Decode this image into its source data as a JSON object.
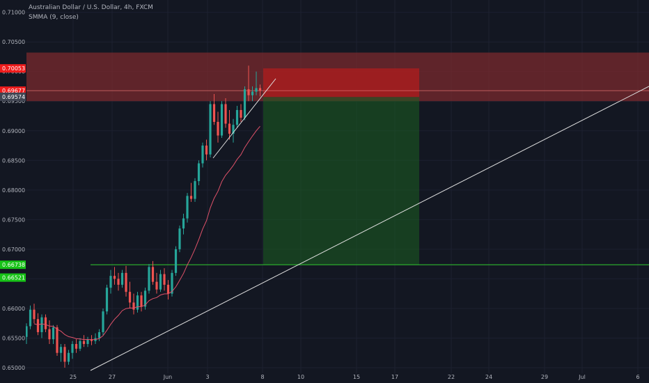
{
  "header": {
    "title": "Australian Dollar / U.S. Dollar, 4h, FXCM",
    "indicator": "SMMA (9, close)"
  },
  "colors": {
    "background": "#131722",
    "up": "#26a69a",
    "down": "#ef5350",
    "smma": "#e0526a",
    "resistance_zone": "#7a2a2e",
    "stop_zone": "#b71c1c",
    "target_zone": "#1b5e20",
    "support_line": "#2eb82e",
    "trendline": "#e0e0e0"
  },
  "chart_data": {
    "type": "candlestick",
    "ylim": [
      0.6497,
      0.7138
    ],
    "y_ticks": [
      "0.71000",
      "0.70500",
      "0.70000",
      "0.69500",
      "0.69000",
      "0.68500",
      "0.68000",
      "0.67500",
      "0.67000",
      "0.66500",
      "0.66000",
      "0.65500",
      "0.65000"
    ],
    "x_ticks": [
      "25",
      "27",
      "Jun",
      "3",
      "8",
      "10",
      "15",
      "17",
      "22",
      "24",
      "29",
      "Jul",
      "6"
    ],
    "price_labels": [
      {
        "text": "0.70053",
        "value": 0.70053,
        "kind": "red"
      },
      {
        "text": "0.69677",
        "value": 0.69677,
        "kind": "red"
      },
      {
        "text": "0.69574",
        "value": 0.69574,
        "kind": "gray"
      },
      {
        "text": "0.66738",
        "value": 0.66738,
        "kind": "green"
      },
      {
        "text": "0.66521",
        "value": 0.66521,
        "kind": "green"
      }
    ],
    "resistance_zone": {
      "top": 0.7032,
      "bottom": 0.695
    },
    "position": {
      "entry": 0.6957,
      "stop": 0.70053,
      "target": 0.66738
    },
    "support_level": 0.66738,
    "smma_period": 9,
    "candles": [
      [
        0.6552,
        0.6575,
        0.654,
        0.657
      ],
      [
        0.657,
        0.6605,
        0.6565,
        0.6598
      ],
      [
        0.6598,
        0.6608,
        0.6575,
        0.6582
      ],
      [
        0.6582,
        0.6592,
        0.6555,
        0.656
      ],
      [
        0.656,
        0.659,
        0.655,
        0.6585
      ],
      [
        0.6585,
        0.659,
        0.656,
        0.6565
      ],
      [
        0.6565,
        0.658,
        0.654,
        0.6548
      ],
      [
        0.6548,
        0.6572,
        0.654,
        0.6568
      ],
      [
        0.6568,
        0.6572,
        0.652,
        0.6525
      ],
      [
        0.6525,
        0.654,
        0.651,
        0.6535
      ],
      [
        0.6535,
        0.654,
        0.65,
        0.651
      ],
      [
        0.651,
        0.653,
        0.6505,
        0.6525
      ],
      [
        0.6525,
        0.6545,
        0.6515,
        0.654
      ],
      [
        0.654,
        0.6548,
        0.6525,
        0.6532
      ],
      [
        0.6532,
        0.655,
        0.6528,
        0.6545
      ],
      [
        0.6545,
        0.6555,
        0.6535,
        0.654
      ],
      [
        0.654,
        0.6552,
        0.6535,
        0.6548
      ],
      [
        0.6548,
        0.6555,
        0.6538,
        0.6545
      ],
      [
        0.6545,
        0.6558,
        0.654,
        0.655
      ],
      [
        0.655,
        0.6565,
        0.6545,
        0.656
      ],
      [
        0.656,
        0.66,
        0.6555,
        0.6595
      ],
      [
        0.6595,
        0.664,
        0.659,
        0.6635
      ],
      [
        0.6635,
        0.6665,
        0.6625,
        0.6655
      ],
      [
        0.6655,
        0.667,
        0.664,
        0.665
      ],
      [
        0.665,
        0.666,
        0.663,
        0.664
      ],
      [
        0.664,
        0.6665,
        0.6635,
        0.666
      ],
      [
        0.666,
        0.6672,
        0.662,
        0.6628
      ],
      [
        0.6628,
        0.6645,
        0.66,
        0.661
      ],
      [
        0.661,
        0.6625,
        0.659,
        0.6598
      ],
      [
        0.6598,
        0.6628,
        0.6593,
        0.6622
      ],
      [
        0.6622,
        0.6628,
        0.6595,
        0.6603
      ],
      [
        0.6603,
        0.6635,
        0.6598,
        0.663
      ],
      [
        0.663,
        0.6675,
        0.6625,
        0.667
      ],
      [
        0.667,
        0.668,
        0.664,
        0.6645
      ],
      [
        0.6645,
        0.666,
        0.6625,
        0.6632
      ],
      [
        0.6632,
        0.6665,
        0.6628,
        0.6658
      ],
      [
        0.6658,
        0.6668,
        0.663,
        0.664
      ],
      [
        0.664,
        0.6648,
        0.6615,
        0.6625
      ],
      [
        0.6625,
        0.6665,
        0.662,
        0.666
      ],
      [
        0.666,
        0.6705,
        0.6655,
        0.67
      ],
      [
        0.67,
        0.674,
        0.6695,
        0.6735
      ],
      [
        0.6735,
        0.676,
        0.6725,
        0.6752
      ],
      [
        0.6752,
        0.6795,
        0.6745,
        0.679
      ],
      [
        0.679,
        0.6812,
        0.678,
        0.6785
      ],
      [
        0.6785,
        0.682,
        0.678,
        0.6815
      ],
      [
        0.6815,
        0.685,
        0.6808,
        0.6845
      ],
      [
        0.6845,
        0.688,
        0.6838,
        0.6875
      ],
      [
        0.6875,
        0.6885,
        0.685,
        0.686
      ],
      [
        0.686,
        0.695,
        0.6855,
        0.6945
      ],
      [
        0.6945,
        0.6962,
        0.691,
        0.6915
      ],
      [
        0.6915,
        0.6932,
        0.688,
        0.6892
      ],
      [
        0.6892,
        0.695,
        0.6888,
        0.6945
      ],
      [
        0.6945,
        0.6955,
        0.6905,
        0.6912
      ],
      [
        0.6912,
        0.6935,
        0.6885,
        0.6895
      ],
      [
        0.6895,
        0.692,
        0.688,
        0.691
      ],
      [
        0.691,
        0.6942,
        0.6905,
        0.6935
      ],
      [
        0.6935,
        0.6945,
        0.6915,
        0.6922
      ],
      [
        0.6922,
        0.6975,
        0.6918,
        0.697
      ],
      [
        0.697,
        0.701,
        0.695,
        0.696
      ],
      [
        0.696,
        0.6975,
        0.695,
        0.6966
      ],
      [
        0.6966,
        0.7,
        0.696,
        0.6972
      ],
      [
        0.6972,
        0.6978,
        0.6958,
        0.6968
      ]
    ]
  }
}
